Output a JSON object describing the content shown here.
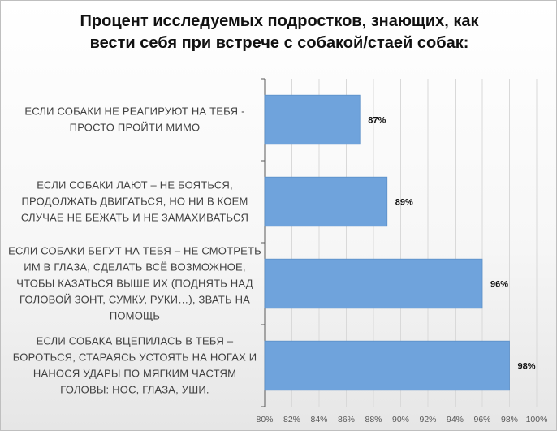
{
  "chart_data": {
    "type": "bar",
    "orientation": "horizontal",
    "title": "Процент исследуемых подростков, знающих, как\nвести себя при встрече с собакой/стаей собак:",
    "categories": [
      [
        "ЕСЛИ СОБАКИ НЕ РЕАГИРУЮТ НА ТЕБЯ -",
        "ПРОСТО ПРОЙТИ МИМО"
      ],
      [
        "ЕСЛИ СОБАКИ ЛАЮТ – НЕ БОЯТЬСЯ,",
        "ПРОДОЛЖАТЬ ДВИГАТЬСЯ, НО НИ В КОЕМ",
        "СЛУЧАЕ НЕ БЕЖАТЬ И НЕ ЗАМАХИВАТЬСЯ"
      ],
      [
        "ЕСЛИ СОБАКИ БЕГУТ НА ТЕБЯ – НЕ СМОТРЕТЬ",
        "ИМ В ГЛАЗА, СДЕЛАТЬ ВСЁ ВОЗМОЖНОЕ,",
        "ЧТОБЫ КАЗАТЬСЯ ВЫШЕ ИХ (ПОДНЯТЬ НАД",
        "ГОЛОВОЙ ЗОНТ, СУМКУ, РУКИ…), ЗВАТЬ НА",
        "ПОМОЩЬ"
      ],
      [
        "ЕСЛИ СОБАКА ВЦЕПИЛАСЬ В ТЕБЯ –",
        "БОРОТЬСЯ, СТАРАЯСЬ УСТОЯТЬ НА НОГАХ И",
        "НАНОСЯ УДАРЫ ПО МЯГКИМ ЧАСТЯМ",
        "ГОЛОВЫ: НОС, ГЛАЗА, УШИ."
      ]
    ],
    "values": [
      87,
      89,
      96,
      98
    ],
    "data_labels": [
      "87%",
      "89%",
      "96%",
      "98%"
    ],
    "xlim": [
      80,
      100
    ],
    "x_ticks": [
      "80%",
      "82%",
      "84%",
      "86%",
      "88%",
      "90%",
      "92%",
      "94%",
      "96%",
      "98%",
      "100%"
    ],
    "grid": true,
    "legend": "none",
    "colors": {
      "bar": "#6fa3dc",
      "bar_edge": "#5b8fc8",
      "grid": "#d9d9d9",
      "axis": "#595959"
    }
  }
}
